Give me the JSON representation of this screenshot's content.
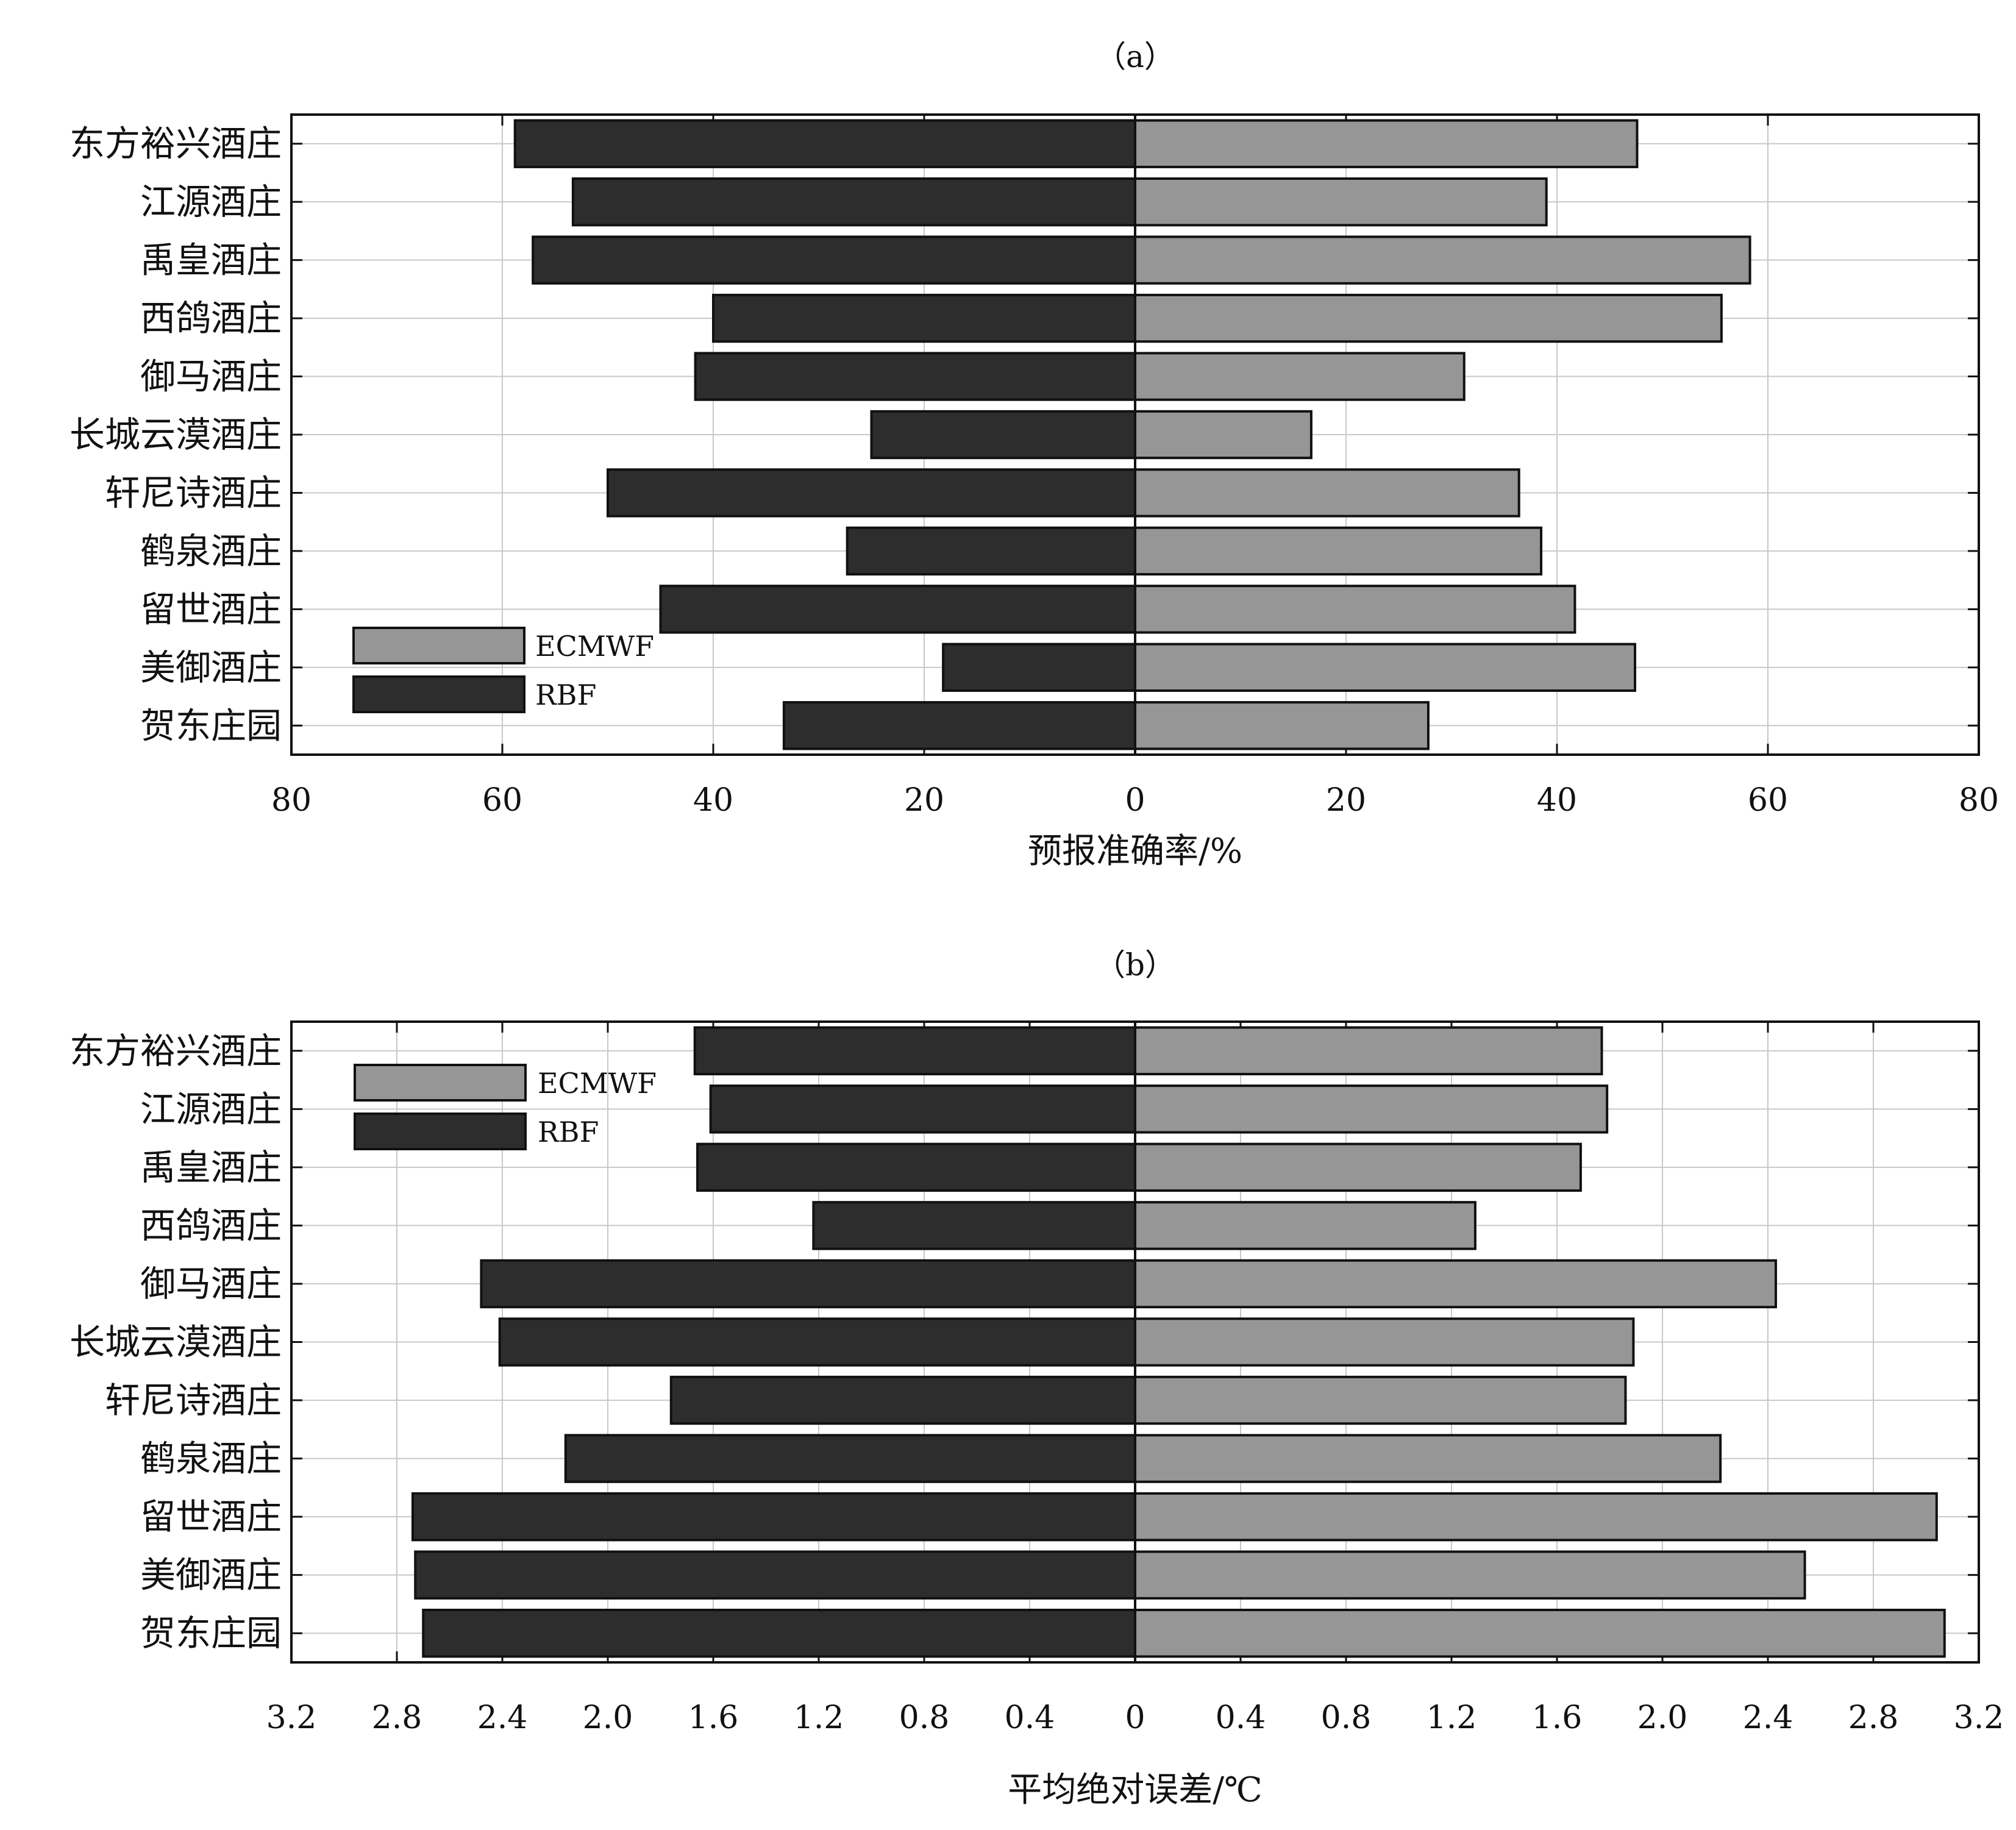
{
  "panels": [
    {
      "panel_label": "（a）",
      "xlabel": "预报准确率/%",
      "tick_labels": [
        "80",
        "60",
        "40",
        "20",
        "0",
        "20",
        "40",
        "60",
        "80"
      ]
    },
    {
      "panel_label": "（b）",
      "xlabel": "平均绝对误差/℃",
      "tick_labels": [
        "3.2",
        "2.8",
        "2.4",
        "2.0",
        "1.6",
        "1.2",
        "0.8",
        "0.4",
        "0",
        "0.4",
        "0.8",
        "1.2",
        "1.6",
        "2.0",
        "2.4",
        "2.8",
        "3.2"
      ]
    }
  ],
  "colors": {
    "ecmwf": "#969696",
    "rbf": "#2d2d2d",
    "grid": "#c8c8c8",
    "axis": "#111111"
  },
  "chart_data": [
    {
      "type": "bar",
      "orientation": "horizontal-butterfly",
      "title": "（a）",
      "xlabel": "预报准确率/%",
      "xlim": [
        -80,
        80
      ],
      "grid": true,
      "legend_position": "bottom-left",
      "categories": [
        "东方裕兴酒庄",
        "江源酒庄",
        "禹皇酒庄",
        "西鸽酒庄",
        "御马酒庄",
        "长城云漠酒庄",
        "轩尼诗酒庄",
        "鹤泉酒庄",
        "留世酒庄",
        "美御酒庄",
        "贺东庄园"
      ],
      "series": [
        {
          "name": "ECMWF",
          "side": "right",
          "values": [
            47.6,
            39.0,
            58.3,
            55.6,
            31.2,
            16.7,
            36.4,
            38.5,
            41.7,
            47.4,
            27.8
          ]
        },
        {
          "name": "RBF",
          "side": "left",
          "values": [
            58.8,
            53.3,
            57.1,
            40.0,
            41.7,
            25.0,
            50.0,
            27.3,
            45.0,
            18.2,
            33.3
          ]
        }
      ]
    },
    {
      "type": "bar",
      "orientation": "horizontal-butterfly",
      "title": "（b）",
      "xlabel": "平均绝对误差/℃",
      "xlim": [
        -3.2,
        3.2
      ],
      "grid": true,
      "legend_position": "top-left",
      "categories": [
        "东方裕兴酒庄",
        "江源酒庄",
        "禹皇酒庄",
        "西鸽酒庄",
        "御马酒庄",
        "长城云漠酒庄",
        "轩尼诗酒庄",
        "鹤泉酒庄",
        "留世酒庄",
        "美御酒庄",
        "贺东庄园"
      ],
      "series": [
        {
          "name": "ECMWF",
          "side": "right",
          "values": [
            1.77,
            1.79,
            1.69,
            1.29,
            2.43,
            1.89,
            1.86,
            2.22,
            3.04,
            2.54,
            3.07
          ]
        },
        {
          "name": "RBF",
          "side": "left",
          "values": [
            1.67,
            1.61,
            1.66,
            1.22,
            2.48,
            2.41,
            1.76,
            2.16,
            2.74,
            2.73,
            2.7
          ]
        }
      ]
    }
  ]
}
